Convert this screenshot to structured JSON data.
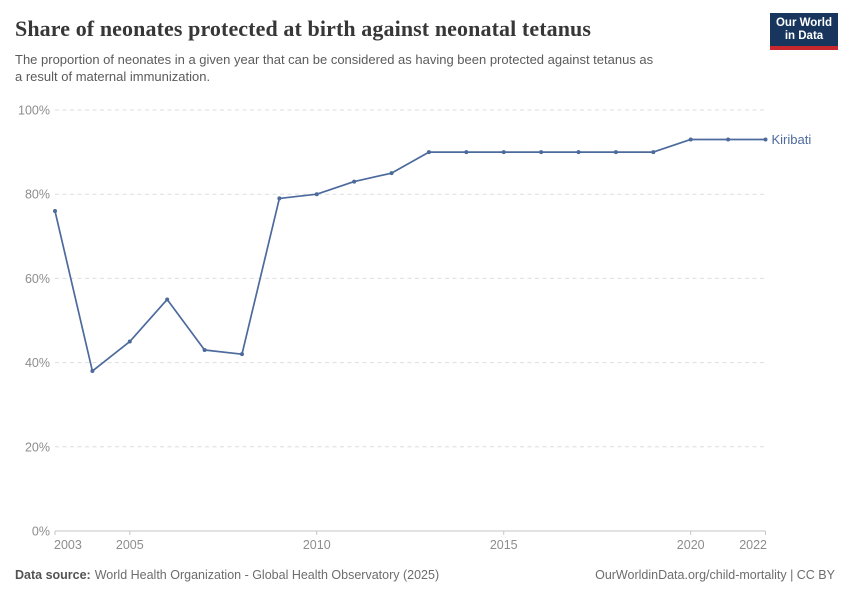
{
  "header": {
    "title": "Share of neonates protected at birth against neonatal tetanus",
    "subtitle": "The proportion of neonates in a given year that can be considered as having been protected against tetanus as\na result of maternal immunization.",
    "logo_line1": "Our World",
    "logo_line2": "in Data"
  },
  "footer": {
    "source_label": "Data source:",
    "source_text": "World Health Organization - Global Health Observatory (2025)",
    "link_text": "OurWorldinData.org/child-mortality | CC BY"
  },
  "colors": {
    "line": "#4c6a9c",
    "grid": "#dedede",
    "axis": "#c6c6c6",
    "axis_text": "#8d8d8d",
    "logo_bg": "#18365d",
    "logo_stripe": "#c8272d"
  },
  "chart_data": {
    "type": "line",
    "title": "Share of neonates protected at birth against neonatal tetanus",
    "xlabel": "",
    "ylabel": "",
    "xlim": [
      2003,
      2022
    ],
    "ylim": [
      0,
      100
    ],
    "xticks": [
      2003,
      2005,
      2010,
      2015,
      2020,
      2022
    ],
    "yticks": [
      0,
      20,
      40,
      60,
      80,
      100
    ],
    "ytick_suffix": "%",
    "grid": "horizontal-dashed",
    "legend_position": "end-of-line-label",
    "series": [
      {
        "name": "Kiribati",
        "x": [
          2003,
          2004,
          2005,
          2006,
          2007,
          2008,
          2009,
          2010,
          2011,
          2012,
          2013,
          2014,
          2015,
          2016,
          2017,
          2018,
          2019,
          2020,
          2021,
          2022
        ],
        "values": [
          76,
          38,
          45,
          55,
          43,
          42,
          79,
          80,
          83,
          85,
          90,
          90,
          90,
          90,
          90,
          90,
          90,
          93,
          93,
          93
        ]
      }
    ]
  }
}
